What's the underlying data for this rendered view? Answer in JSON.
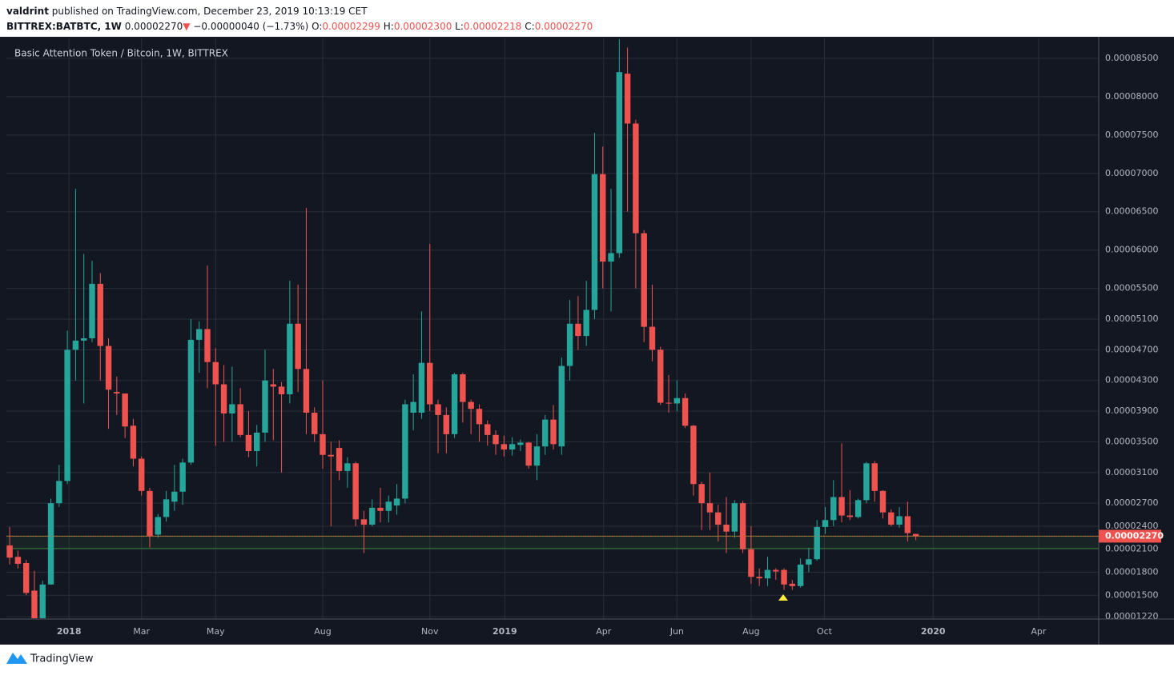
{
  "header": {
    "user": "valdrint",
    "published": "published on TradingView.com, December 23, 2019 10:13:19 CET",
    "symbol": "BITTREX:BATBTC, 1W",
    "last": "0.00002270",
    "arrow": "▼",
    "change": "−0.00000040 (−1.73%)",
    "open_label": "O:",
    "open": "0.00002299",
    "high_label": "H:",
    "high": "0.00002300",
    "low_label": "L:",
    "low": "0.00002218",
    "close_label": "C:",
    "close": "0.00002270"
  },
  "chart_data": {
    "type": "candlestick",
    "title": "Basic Attention Token / Bitcoin, 1W, BITTREX",
    "up_color": "#26a69a",
    "down_color": "#ef5350",
    "grid": true,
    "open": [
      2.15e-05,
      2e-05,
      1.92e-05,
      1.56e-05,
      1.2e-05,
      1.64e-05,
      2.7e-05,
      2.99e-05,
      4.7e-05,
      4.82e-05,
      4.85e-05,
      5.56e-05,
      4.75e-05,
      4.15e-05,
      4.13e-05,
      3.71e-05,
      3.28e-05,
      2.86e-05,
      2.29e-05,
      2.52e-05,
      2.72e-05,
      2.85e-05,
      3.23e-05,
      4.83e-05,
      4.97e-05,
      4.54e-05,
      4.25e-05,
      3.87e-05,
      3.99e-05,
      3.59e-05,
      3.38e-05,
      3.62e-05,
      4.25e-05,
      4.22e-05,
      4.12e-05,
      5.04e-05,
      4.45e-05,
      3.88e-05,
      3.6e-05,
      3.33e-05,
      3.42e-05,
      3.12e-05,
      3.22e-05,
      2.49e-05,
      2.42e-05,
      2.64e-05,
      2.6e-05,
      2.67e-05,
      2.76e-05,
      3.88e-05,
      3.88e-05,
      4.53e-05,
      3.99e-05,
      3.85e-05,
      3.6e-05,
      4.38e-05,
      4.02e-05,
      3.93e-05,
      3.73e-05,
      3.59e-05,
      3.47e-05,
      3.4e-05,
      3.46e-05,
      3.49e-05,
      3.19e-05,
      3.44e-05,
      3.79e-05,
      3.44e-05,
      4.49e-05,
      5.04e-05,
      4.88e-05,
      5.22e-05,
      6.99e-05,
      5.85e-05,
      5.96e-05,
      8.3e-05,
      7.65e-05,
      6.22e-05,
      5e-05,
      4.7e-05,
      4.01e-05,
      4e-05,
      4.07e-05,
      3.71e-05,
      2.95e-05,
      2.7e-05,
      2.58e-05,
      2.42e-05,
      2.33e-05,
      2.7e-05,
      2.1e-05,
      1.74e-05,
      1.72e-05,
      1.83e-05,
      1.83e-05,
      1.65e-05,
      1.62e-05,
      1.9e-05,
      1.97e-05,
      2.39e-05,
      2.48e-05,
      2.78e-05,
      2.54e-05,
      2.52e-05,
      2.74e-05,
      3.22e-05,
      2.86e-05,
      2.58e-05,
      2.42e-05,
      2.53e-05,
      2.299e-05
    ],
    "high": [
      2.39e-05,
      2.08e-05,
      1.96e-05,
      1.82e-05,
      1.69e-05,
      2.76e-05,
      3.2e-05,
      4.95e-05,
      6.8e-05,
      5.95e-05,
      5.86e-05,
      5.7e-05,
      4.85e-05,
      4.35e-05,
      4.13e-05,
      3.8e-05,
      3.31e-05,
      2.9e-05,
      2.56e-05,
      2.86e-05,
      3.2e-05,
      3.28e-05,
      5.1e-05,
      5.07e-05,
      5.8e-05,
      4.72e-05,
      4.5e-05,
      4.48e-05,
      4.2e-05,
      3.9e-05,
      3.72e-05,
      4.7e-05,
      4.45e-05,
      4.28e-05,
      5.6e-05,
      5.55e-05,
      6.55e-05,
      3.95e-05,
      4.3e-05,
      3.5e-05,
      3.52e-05,
      3.3e-05,
      3.24e-05,
      2.6e-05,
      2.75e-05,
      2.9e-05,
      2.8e-05,
      2.95e-05,
      4.05e-05,
      4.38e-05,
      5.2e-05,
      6.08e-05,
      4.05e-05,
      3.95e-05,
      4.4e-05,
      4.4e-05,
      4.05e-05,
      3.99e-05,
      3.78e-05,
      3.65e-05,
      3.58e-05,
      3.56e-05,
      3.53e-05,
      3.5e-05,
      3.6e-05,
      3.85e-05,
      3.98e-05,
      4.6e-05,
      5.35e-05,
      5.4e-05,
      5.6e-05,
      7.53e-05,
      7.35e-05,
      6.8e-05,
      8.75e-05,
      8.64e-05,
      7.7e-05,
      6.26e-05,
      5.55e-05,
      4.74e-05,
      4.37e-05,
      4.3e-05,
      4.13e-05,
      3.72e-05,
      2.98e-05,
      3.1e-05,
      2.68e-05,
      2.78e-05,
      2.74e-05,
      2.73e-05,
      2.4e-05,
      1.85e-05,
      2e-05,
      1.85e-05,
      1.85e-05,
      1.7e-05,
      1.98e-05,
      2.12e-05,
      2.48e-05,
      2.65e-05,
      3e-05,
      3.48e-05,
      2.87e-05,
      2.76e-05,
      3.24e-05,
      3.25e-05,
      2.87e-05,
      2.62e-05,
      2.65e-05,
      2.72e-05,
      2.3e-05
    ],
    "low": [
      1.9e-05,
      1.85e-05,
      1.5e-05,
      1.2e-05,
      1.2e-05,
      1.64e-05,
      2.65e-05,
      2.95e-05,
      4.3e-05,
      4e-05,
      4.8e-05,
      4.3e-05,
      3.67e-05,
      3.85e-05,
      3.55e-05,
      3.18e-05,
      2.8e-05,
      2.12e-05,
      2.25e-05,
      2.46e-05,
      2.6e-05,
      2.68e-05,
      3.2e-05,
      4.4e-05,
      4.2e-05,
      3.45e-05,
      3.5e-05,
      3.5e-05,
      3.56e-05,
      3.3e-05,
      3.18e-05,
      3.5e-05,
      3.52e-05,
      3.1e-05,
      4e-05,
      4.15e-05,
      3.6e-05,
      3.5e-05,
      3.15e-05,
      2.4e-05,
      3e-05,
      2.9e-05,
      2.4e-05,
      2.05e-05,
      2.4e-05,
      2.45e-05,
      2.45e-05,
      2.55e-05,
      2.7e-05,
      3.65e-05,
      3.8e-05,
      3.9e-05,
      3.35e-05,
      3.35e-05,
      3.55e-05,
      3.75e-05,
      3.6e-05,
      3.5e-05,
      3.45e-05,
      3.33e-05,
      3.31e-05,
      3.32e-05,
      3.38e-05,
      3.15e-05,
      3e-05,
      3.33e-05,
      3.4e-05,
      3.33e-05,
      4.3e-05,
      4.7e-05,
      4.75e-05,
      5.1e-05,
      5.5e-05,
      5.2e-05,
      5.9e-05,
      6.5e-05,
      5.5e-05,
      4.8e-05,
      4.55e-05,
      3.98e-05,
      3.88e-05,
      3.9e-05,
      3.68e-05,
      2.8e-05,
      2.35e-05,
      2.35e-05,
      2.2e-05,
      2.05e-05,
      2.25e-05,
      2.05e-05,
      1.65e-05,
      1.62e-05,
      1.62e-05,
      1.7e-05,
      1.57e-05,
      1.57e-05,
      1.6e-05,
      1.8e-05,
      1.95e-05,
      2.3e-05,
      2.4e-05,
      2.45e-05,
      2.48e-05,
      2.5e-05,
      2.7e-05,
      2.72e-05,
      2.5e-05,
      2.4e-05,
      2.38e-05,
      2.2e-05,
      2.218e-05
    ],
    "close": [
      1.99e-05,
      1.91e-05,
      1.53e-05,
      1.2e-05,
      1.64e-05,
      2.7e-05,
      2.99e-05,
      4.7e-05,
      4.82e-05,
      4.85e-05,
      5.56e-05,
      4.75e-05,
      4.18e-05,
      4.13e-05,
      3.7e-05,
      3.28e-05,
      2.86e-05,
      2.27e-05,
      2.52e-05,
      2.75e-05,
      2.85e-05,
      3.23e-05,
      4.83e-05,
      4.97e-05,
      4.54e-05,
      4.25e-05,
      3.87e-05,
      3.99e-05,
      3.59e-05,
      3.38e-05,
      3.62e-05,
      4.3e-05,
      4.22e-05,
      4.12e-05,
      5.04e-05,
      4.45e-05,
      3.88e-05,
      3.6e-05,
      3.33e-05,
      3.31e-05,
      3.12e-05,
      3.22e-05,
      2.49e-05,
      2.42e-05,
      2.64e-05,
      2.6e-05,
      2.72e-05,
      2.76e-05,
      3.99e-05,
      4.02e-05,
      4.53e-05,
      3.99e-05,
      3.85e-05,
      3.6e-05,
      4.38e-05,
      4.02e-05,
      3.93e-05,
      3.73e-05,
      3.59e-05,
      3.47e-05,
      3.4e-05,
      3.47e-05,
      3.49e-05,
      3.19e-05,
      3.44e-05,
      3.79e-05,
      3.47e-05,
      4.49e-05,
      5.04e-05,
      4.88e-05,
      5.22e-05,
      6.99e-05,
      5.85e-05,
      5.96e-05,
      8.32e-05,
      7.65e-05,
      6.22e-05,
      5e-05,
      4.7e-05,
      4.01e-05,
      4e-05,
      4.07e-05,
      3.71e-05,
      2.95e-05,
      2.7e-05,
      2.58e-05,
      2.42e-05,
      2.33e-05,
      2.7e-05,
      2.1e-05,
      1.74e-05,
      1.72e-05,
      1.83e-05,
      1.81e-05,
      1.64e-05,
      1.62e-05,
      1.9e-05,
      1.97e-05,
      2.39e-05,
      2.48e-05,
      2.78e-05,
      2.54e-05,
      2.52e-05,
      2.74e-05,
      3.22e-05,
      2.86e-05,
      2.58e-05,
      2.42e-05,
      2.53e-05,
      2.31e-05,
      2.27e-05
    ],
    "xlim": [
      -0.4,
      132.2
    ],
    "xticks": [
      {
        "value": 7.2,
        "label": "2018"
      },
      {
        "value": 16.0,
        "label": "Mar"
      },
      {
        "value": 25.0,
        "label": "May"
      },
      {
        "value": 38.0,
        "label": "Aug"
      },
      {
        "value": 51.0,
        "label": "Nov"
      },
      {
        "value": 60.1,
        "label": "2019"
      },
      {
        "value": 72.1,
        "label": "Apr"
      },
      {
        "value": 81.0,
        "label": "Jun"
      },
      {
        "value": 90.0,
        "label": "Aug"
      },
      {
        "value": 98.9,
        "label": "Oct"
      },
      {
        "value": 112.1,
        "label": "2020"
      },
      {
        "value": 124.9,
        "label": "Apr"
      }
    ],
    "ylim": [
      1.19e-05,
      8.76e-05
    ],
    "yticks": [
      {
        "value": 1.22e-05,
        "label": "0.00001220"
      },
      {
        "value": 1.5e-05,
        "label": "0.00001500"
      },
      {
        "value": 1.8e-05,
        "label": "0.00001800"
      },
      {
        "value": 2.1e-05,
        "label": "0.00002100"
      },
      {
        "value": 2.4e-05,
        "label": "0.00002400"
      },
      {
        "value": 2.7e-05,
        "label": "0.00002700"
      },
      {
        "value": 3.1e-05,
        "label": "0.00003100"
      },
      {
        "value": 3.5e-05,
        "label": "0.00003500"
      },
      {
        "value": 3.9e-05,
        "label": "0.00003900"
      },
      {
        "value": 4.3e-05,
        "label": "0.00004300"
      },
      {
        "value": 4.7e-05,
        "label": "0.00004700"
      },
      {
        "value": 5.1e-05,
        "label": "0.00005100"
      },
      {
        "value": 5.5e-05,
        "label": "0.00005500"
      },
      {
        "value": 6e-05,
        "label": "0.00006000"
      },
      {
        "value": 6.5e-05,
        "label": "0.00006500"
      },
      {
        "value": 7e-05,
        "label": "0.00007000"
      },
      {
        "value": 7.5e-05,
        "label": "0.00007500"
      },
      {
        "value": 8e-05,
        "label": "0.00008000"
      },
      {
        "value": 8.5e-05,
        "label": "0.00008500"
      }
    ],
    "last_price": {
      "value": 2.27e-05,
      "label": "0.00002270"
    },
    "zone": [
      2.11e-05,
      2.27e-05
    ]
  },
  "footer": {
    "brand": "TradingView"
  }
}
